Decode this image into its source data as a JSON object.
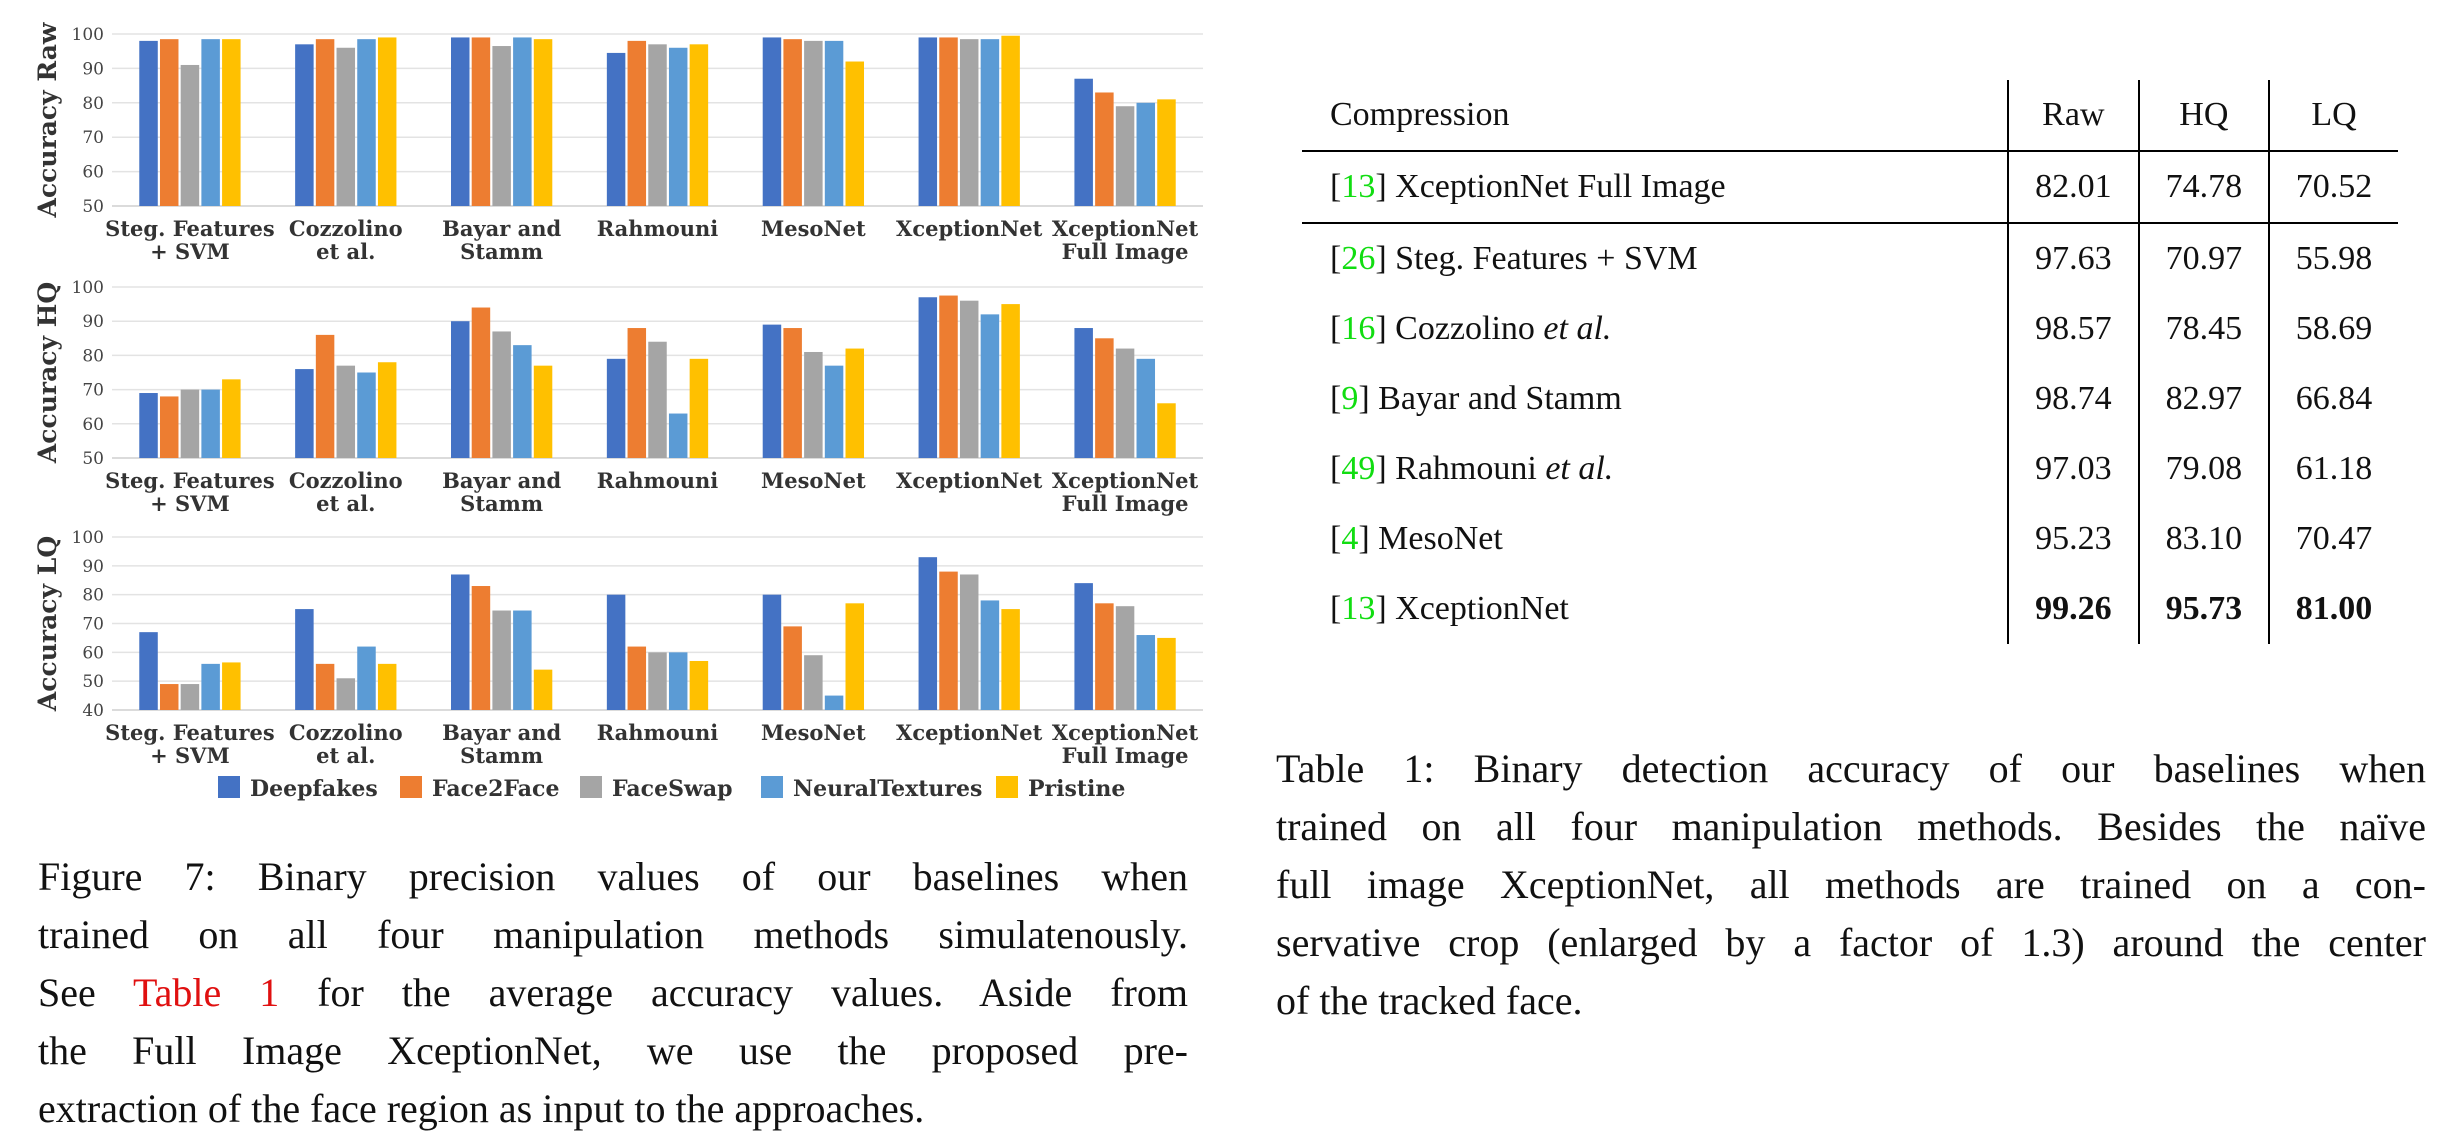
{
  "figure": {
    "caption_lines": [
      [
        {
          "t": "Figure 7:  Binary precision values of our baselines when"
        }
      ],
      [
        {
          "t": "trained on all four manipulation methods simulatenously."
        }
      ],
      [
        {
          "t": "See "
        },
        {
          "t": "Table 1",
          "c": "tabref"
        },
        {
          "t": " for the average accuracy values.  Aside from"
        }
      ],
      [
        {
          "t": "the Full Image XceptionNet, we use the proposed pre-"
        }
      ],
      [
        {
          "t": "extraction of the face region as input to the approaches."
        }
      ]
    ]
  },
  "chart_data": [
    {
      "type": "bar",
      "ylabel": "Accuracy Raw",
      "ylim": [
        50,
        100
      ],
      "yticks": [
        50,
        60,
        70,
        80,
        90,
        100
      ],
      "grid": true,
      "categories": [
        [
          "Steg. Features",
          "+ SVM"
        ],
        [
          "Cozzolino",
          "et al."
        ],
        [
          "Bayar and",
          "Stamm"
        ],
        [
          "Rahmouni"
        ],
        [
          "MesoNet"
        ],
        [
          "XceptionNet"
        ],
        [
          "XceptionNet",
          "Full Image"
        ]
      ],
      "series": [
        {
          "name": "Deepfakes",
          "color": "#4472c4",
          "values": [
            98,
            97,
            99,
            94.5,
            99,
            99,
            87
          ]
        },
        {
          "name": "Face2Face",
          "color": "#ed7d31",
          "values": [
            98.5,
            98.5,
            99,
            98,
            98.5,
            99,
            83
          ]
        },
        {
          "name": "FaceSwap",
          "color": "#a5a5a5",
          "values": [
            91,
            96,
            96.5,
            97,
            98,
            98.5,
            79
          ]
        },
        {
          "name": "NeuralTextures",
          "color": "#5b9bd5",
          "values": [
            98.5,
            98.5,
            99,
            96,
            98,
            98.5,
            80
          ]
        },
        {
          "name": "Pristine",
          "color": "#ffc000",
          "values": [
            98.5,
            99,
            98.5,
            97,
            92,
            99.5,
            81
          ]
        }
      ]
    },
    {
      "type": "bar",
      "ylabel": "Accuracy HQ",
      "ylim": [
        50,
        100
      ],
      "yticks": [
        50,
        60,
        70,
        80,
        90,
        100
      ],
      "grid": true,
      "categories": [
        [
          "Steg. Features",
          "+ SVM"
        ],
        [
          "Cozzolino",
          "et al."
        ],
        [
          "Bayar and",
          "Stamm"
        ],
        [
          "Rahmouni"
        ],
        [
          "MesoNet"
        ],
        [
          "XceptionNet"
        ],
        [
          "XceptionNet",
          "Full Image"
        ]
      ],
      "series": [
        {
          "name": "Deepfakes",
          "color": "#4472c4",
          "values": [
            69,
            76,
            90,
            79,
            89,
            97,
            88
          ]
        },
        {
          "name": "Face2Face",
          "color": "#ed7d31",
          "values": [
            68,
            86,
            94,
            88,
            88,
            97.5,
            85
          ]
        },
        {
          "name": "FaceSwap",
          "color": "#a5a5a5",
          "values": [
            70,
            77,
            87,
            84,
            81,
            96,
            82
          ]
        },
        {
          "name": "NeuralTextures",
          "color": "#5b9bd5",
          "values": [
            70,
            75,
            83,
            63,
            77,
            92,
            79
          ]
        },
        {
          "name": "Pristine",
          "color": "#ffc000",
          "values": [
            73,
            78,
            77,
            79,
            82,
            95,
            66
          ]
        }
      ]
    },
    {
      "type": "bar",
      "ylabel": "Accuracy LQ",
      "ylim": [
        40,
        100
      ],
      "yticks": [
        40,
        50,
        60,
        70,
        80,
        90,
        100
      ],
      "grid": true,
      "legend": "bottom",
      "categories": [
        [
          "Steg. Features",
          "+ SVM"
        ],
        [
          "Cozzolino",
          "et al."
        ],
        [
          "Bayar and",
          "Stamm"
        ],
        [
          "Rahmouni"
        ],
        [
          "MesoNet"
        ],
        [
          "XceptionNet"
        ],
        [
          "XceptionNet",
          "Full Image"
        ]
      ],
      "series": [
        {
          "name": "Deepfakes",
          "color": "#4472c4",
          "values": [
            67,
            75,
            87,
            80,
            80,
            93,
            84
          ]
        },
        {
          "name": "Face2Face",
          "color": "#ed7d31",
          "values": [
            49,
            56,
            83,
            62,
            69,
            88,
            77
          ]
        },
        {
          "name": "FaceSwap",
          "color": "#a5a5a5",
          "values": [
            49,
            51,
            74.5,
            60,
            59,
            87,
            76
          ]
        },
        {
          "name": "NeuralTextures",
          "color": "#5b9bd5",
          "values": [
            56,
            62,
            74.5,
            60,
            45,
            78,
            66
          ]
        },
        {
          "name": "Pristine",
          "color": "#ffc000",
          "values": [
            56.5,
            56,
            54,
            57,
            77,
            75,
            65
          ]
        }
      ]
    }
  ],
  "table": {
    "header": [
      "Compression",
      "Raw",
      "HQ",
      "LQ"
    ],
    "rows": [
      {
        "ref": "13",
        "name": [
          {
            "t": " XceptionNet Full Image"
          }
        ],
        "values": [
          "82.01",
          "74.78",
          "70.52"
        ],
        "cls": "fullimg"
      },
      {
        "ref": "26",
        "name": [
          {
            "t": " Steg. Features + SVM"
          }
        ],
        "values": [
          "97.63",
          "70.97",
          "55.98"
        ]
      },
      {
        "ref": "16",
        "name": [
          {
            "t": " Cozzolino "
          },
          {
            "t": "et al.",
            "i": true
          }
        ],
        "values": [
          "98.57",
          "78.45",
          "58.69"
        ]
      },
      {
        "ref": "9",
        "name": [
          {
            "t": " Bayar and Stamm"
          }
        ],
        "values": [
          "98.74",
          "82.97",
          "66.84"
        ]
      },
      {
        "ref": "49",
        "name": [
          {
            "t": " Rahmouni "
          },
          {
            "t": "et al.",
            "i": true
          }
        ],
        "values": [
          "97.03",
          "79.08",
          "61.18"
        ]
      },
      {
        "ref": "4",
        "name": [
          {
            "t": " MesoNet"
          }
        ],
        "values": [
          "95.23",
          "83.10",
          "70.47"
        ]
      },
      {
        "ref": "13",
        "name": [
          {
            "t": " XceptionNet"
          }
        ],
        "values": [
          "99.26",
          "95.73",
          "81.00"
        ],
        "cls": "best"
      }
    ],
    "caption_lines": [
      [
        {
          "t": "Table 1:  Binary detection accuracy of our baselines when"
        }
      ],
      [
        {
          "t": "trained on all four manipulation methods. Besides the naïve"
        }
      ],
      [
        {
          "t": "full image XceptionNet, all methods are trained on a con-"
        }
      ],
      [
        {
          "t": "servative crop (enlarged by a factor of 1.3) around the center"
        }
      ],
      [
        {
          "t": "of the tracked face."
        }
      ]
    ]
  }
}
